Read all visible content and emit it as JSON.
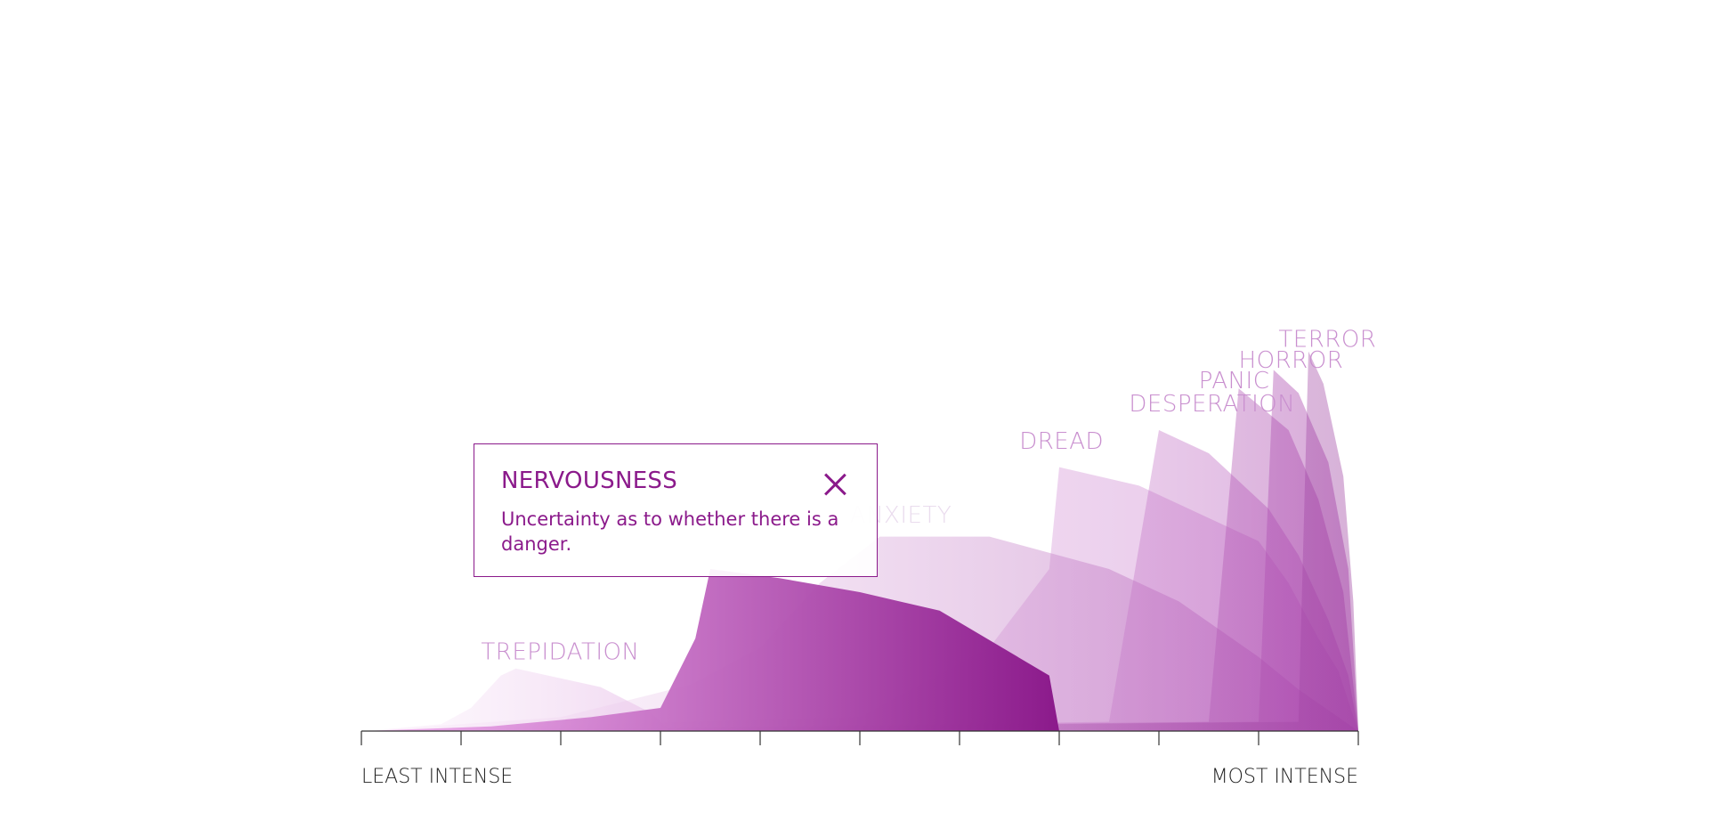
{
  "chart_data": {
    "type": "area",
    "x": [
      0,
      1,
      2,
      3,
      4,
      5,
      6,
      7,
      8,
      9,
      10
    ],
    "xlabels": {
      "min": "LEAST INTENSE",
      "max": "MOST INTENSE"
    },
    "xlim": [
      0,
      10
    ],
    "ylim": [
      0,
      10
    ],
    "grid": false,
    "legend": "inline labels at series peaks",
    "series": [
      {
        "name": "TREPIDATION",
        "peak_x": 1.55,
        "peak_y": 1.35,
        "points": [
          [
            0,
            0
          ],
          [
            0.8,
            0.15
          ],
          [
            1.1,
            0.5
          ],
          [
            1.4,
            1.2
          ],
          [
            1.55,
            1.35
          ],
          [
            2.4,
            0.95
          ],
          [
            2.9,
            0.4
          ],
          [
            3.1,
            0
          ]
        ]
      },
      {
        "name": "NERVOUSNESS",
        "peak_x": 3.5,
        "peak_y": 3.5,
        "points": [
          [
            0,
            0
          ],
          [
            1.3,
            0.1
          ],
          [
            2.3,
            0.3
          ],
          [
            3.0,
            0.5
          ],
          [
            3.35,
            2.0
          ],
          [
            3.5,
            3.5
          ],
          [
            4.2,
            3.3
          ],
          [
            5.0,
            3.0
          ],
          [
            5.8,
            2.6
          ],
          [
            6.9,
            1.2
          ],
          [
            7.0,
            0
          ]
        ]
      },
      {
        "name": "ANXIETY",
        "peak_x": 5.2,
        "peak_y": 4.2,
        "points": [
          [
            0,
            0
          ],
          [
            2.0,
            0.3
          ],
          [
            3.3,
            1.0
          ],
          [
            4.0,
            1.8
          ],
          [
            4.6,
            3.2
          ],
          [
            5.2,
            4.2
          ],
          [
            6.3,
            4.2
          ],
          [
            7.5,
            3.5
          ],
          [
            8.2,
            2.8
          ],
          [
            9.0,
            1.6
          ],
          [
            9.4,
            0.9
          ],
          [
            10,
            0
          ]
        ]
      },
      {
        "name": "DREAD",
        "peak_x": 7.0,
        "peak_y": 5.7,
        "points": [
          [
            0,
            0
          ],
          [
            5.0,
            0.3
          ],
          [
            6.3,
            1.8
          ],
          [
            6.9,
            3.5
          ],
          [
            7.0,
            5.7
          ],
          [
            7.8,
            5.3
          ],
          [
            8.3,
            4.8
          ],
          [
            9.0,
            4.1
          ],
          [
            9.3,
            3.2
          ],
          [
            9.6,
            2.0
          ],
          [
            9.8,
            1.3
          ],
          [
            10,
            0
          ]
        ]
      },
      {
        "name": "DESPERATION",
        "peak_x": 8.0,
        "peak_y": 6.5,
        "points": [
          [
            0,
            0
          ],
          [
            7.5,
            0.2
          ],
          [
            8.0,
            6.5
          ],
          [
            8.5,
            6.0
          ],
          [
            9.1,
            4.8
          ],
          [
            9.4,
            3.8
          ],
          [
            9.7,
            2.4
          ],
          [
            9.9,
            1.2
          ],
          [
            10,
            0
          ]
        ]
      },
      {
        "name": "PANIC",
        "peak_x": 8.8,
        "peak_y": 7.4,
        "points": [
          [
            0,
            0
          ],
          [
            8.5,
            0.2
          ],
          [
            8.8,
            7.4
          ],
          [
            9.3,
            6.5
          ],
          [
            9.6,
            5.0
          ],
          [
            9.85,
            3.0
          ],
          [
            10,
            0
          ]
        ]
      },
      {
        "name": "HORROR",
        "peak_x": 9.15,
        "peak_y": 7.8,
        "points": [
          [
            0,
            0
          ],
          [
            9.0,
            0.2
          ],
          [
            9.15,
            7.8
          ],
          [
            9.4,
            7.3
          ],
          [
            9.7,
            5.8
          ],
          [
            9.9,
            3.5
          ],
          [
            10,
            0
          ]
        ]
      },
      {
        "name": "TERROR",
        "peak_x": 9.5,
        "peak_y": 8.2,
        "points": [
          [
            0,
            0
          ],
          [
            9.4,
            0.2
          ],
          [
            9.5,
            8.2
          ],
          [
            9.65,
            7.5
          ],
          [
            9.85,
            5.5
          ],
          [
            9.95,
            2.8
          ],
          [
            10,
            0
          ]
        ]
      }
    ],
    "label_positions": {
      "TREPIDATION": [
        1.2,
        1.55
      ],
      "ANXIETY": [
        4.9,
        4.5
      ],
      "DREAD": [
        6.6,
        6.1
      ],
      "DESPERATION": [
        7.7,
        6.9
      ],
      "PANIC": [
        8.4,
        7.4
      ],
      "HORROR": [
        8.8,
        7.85
      ],
      "TERROR": [
        9.2,
        8.3
      ]
    }
  },
  "colors": {
    "accent": "#8b1a8b",
    "label": "#c98fcf",
    "label_faded": "#eadcee",
    "axis": "#333333"
  },
  "tooltip": {
    "title": "NERVOUSNESS",
    "description": "Uncertainty as to whether there is a danger.",
    "close_icon": "close-icon"
  },
  "highlighted_series": "NERVOUSNESS"
}
